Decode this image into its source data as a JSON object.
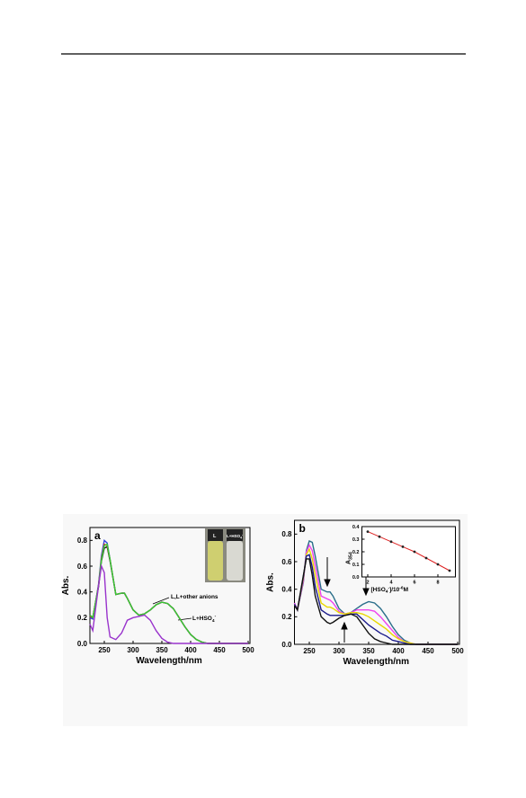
{
  "chart_data": [
    {
      "type": "line",
      "panel_label": "a",
      "y_label": "Abs.",
      "x_label": "Wavelength/nm",
      "x": [
        225,
        230,
        240,
        245,
        250,
        255,
        260,
        270,
        280,
        285,
        290,
        300,
        310,
        320,
        330,
        340,
        350,
        360,
        370,
        380,
        390,
        400,
        410,
        420,
        430,
        450,
        500
      ],
      "series": [
        {
          "color": "#1a1a1a",
          "values": [
            0.22,
            0.2,
            0.44,
            0.64,
            0.74,
            0.75,
            0.64,
            0.38,
            0.39,
            0.39,
            0.35,
            0.26,
            0.22,
            0.23,
            0.26,
            0.3,
            0.32,
            0.31,
            0.27,
            0.2,
            0.13,
            0.07,
            0.03,
            0.01,
            0,
            0,
            0
          ]
        },
        {
          "color": "#3344dd",
          "values": [
            0.2,
            0.19,
            0.46,
            0.68,
            0.8,
            0.78,
            0.65,
            0.38,
            0.39,
            0.39,
            0.35,
            0.26,
            0.22,
            0.23,
            0.26,
            0.3,
            0.32,
            0.31,
            0.27,
            0.2,
            0.13,
            0.07,
            0.03,
            0.01,
            0,
            0,
            0
          ]
        },
        {
          "color": "#dd2222",
          "values": [
            0.21,
            0.2,
            0.45,
            0.66,
            0.77,
            0.76,
            0.65,
            0.38,
            0.39,
            0.39,
            0.35,
            0.26,
            0.22,
            0.23,
            0.26,
            0.3,
            0.32,
            0.31,
            0.27,
            0.2,
            0.13,
            0.07,
            0.03,
            0.01,
            0,
            0,
            0
          ]
        },
        {
          "color": "#33cc33",
          "values": [
            0.22,
            0.2,
            0.45,
            0.65,
            0.76,
            0.77,
            0.65,
            0.38,
            0.39,
            0.39,
            0.35,
            0.26,
            0.22,
            0.23,
            0.26,
            0.3,
            0.32,
            0.31,
            0.27,
            0.2,
            0.13,
            0.07,
            0.03,
            0.01,
            0,
            0,
            0
          ]
        },
        {
          "color": "#9933cc",
          "values": [
            0.15,
            0.1,
            0.45,
            0.6,
            0.55,
            0.2,
            0.05,
            0.03,
            0.08,
            0.13,
            0.18,
            0.2,
            0.21,
            0.22,
            0.18,
            0.1,
            0.04,
            0.01,
            0,
            0,
            0,
            0,
            0,
            0,
            0,
            0,
            0
          ]
        }
      ],
      "xlim": [
        225,
        500
      ],
      "ylim": [
        0,
        0.9
      ],
      "xticks": [
        250,
        300,
        350,
        400,
        450,
        500
      ],
      "yticks": [
        {
          "value": 0,
          "label": "0.0"
        },
        0.2,
        0.4,
        0.6,
        0.8
      ],
      "annotations": [
        [
          "L,L+other anions"
        ],
        [
          "L+HSO",
          "4",
          "-"
        ]
      ],
      "photo_labels": [
        [
          "L"
        ],
        [
          "L+HSO",
          "4",
          "-"
        ]
      ]
    },
    {
      "type": "line",
      "panel_label": "b",
      "y_label": "Abs.",
      "x_label": "Wavelength/nm",
      "x": [
        225,
        230,
        240,
        245,
        250,
        255,
        260,
        270,
        280,
        285,
        290,
        300,
        310,
        320,
        330,
        340,
        350,
        360,
        370,
        380,
        390,
        400,
        410,
        420,
        430,
        450,
        500
      ],
      "series": [
        {
          "color": "#2a6e8a",
          "values": [
            0.3,
            0.25,
            0.45,
            0.68,
            0.75,
            0.74,
            0.64,
            0.4,
            0.38,
            0.38,
            0.35,
            0.26,
            0.22,
            0.23,
            0.26,
            0.29,
            0.31,
            0.3,
            0.26,
            0.2,
            0.13,
            0.07,
            0.03,
            0.01,
            0,
            0,
            0
          ]
        },
        {
          "color": "#ee44ee",
          "values": [
            0.3,
            0.25,
            0.46,
            0.67,
            0.72,
            0.68,
            0.57,
            0.35,
            0.33,
            0.32,
            0.3,
            0.24,
            0.22,
            0.23,
            0.25,
            0.25,
            0.25,
            0.24,
            0.2,
            0.15,
            0.1,
            0.05,
            0.02,
            0.01,
            0,
            0,
            0
          ]
        },
        {
          "color": "#e8d800",
          "values": [
            0.29,
            0.25,
            0.48,
            0.65,
            0.69,
            0.62,
            0.5,
            0.3,
            0.27,
            0.27,
            0.26,
            0.23,
            0.22,
            0.23,
            0.23,
            0.22,
            0.2,
            0.17,
            0.14,
            0.11,
            0.07,
            0.04,
            0.02,
            0.01,
            0,
            0,
            0
          ]
        },
        {
          "color": "#1a1a8a",
          "values": [
            0.29,
            0.25,
            0.49,
            0.64,
            0.65,
            0.56,
            0.42,
            0.25,
            0.22,
            0.21,
            0.21,
            0.21,
            0.21,
            0.22,
            0.22,
            0.18,
            0.14,
            0.11,
            0.08,
            0.06,
            0.03,
            0.02,
            0.01,
            0,
            0,
            0,
            0
          ]
        },
        {
          "color": "#111111",
          "values": [
            0.28,
            0.25,
            0.5,
            0.62,
            0.62,
            0.5,
            0.35,
            0.2,
            0.16,
            0.15,
            0.16,
            0.19,
            0.21,
            0.22,
            0.2,
            0.14,
            0.08,
            0.04,
            0.02,
            0.01,
            0,
            0,
            0,
            0,
            0,
            0,
            0
          ]
        }
      ],
      "xlim": [
        225,
        500
      ],
      "ylim": [
        0,
        0.9
      ],
      "xticks": [
        250,
        300,
        350,
        400,
        450,
        500
      ],
      "yticks": [
        {
          "value": 0,
          "label": "0.0"
        },
        0.2,
        0.4,
        0.6,
        0.8
      ]
    },
    {
      "type": "scatter",
      "y_label": [
        "A",
        "354"
      ],
      "x_label": [
        "[HSO",
        "4",
        "-",
        "]/10",
        "-6",
        "M"
      ],
      "x": [
        2,
        3,
        4,
        5,
        6,
        7,
        8,
        9
      ],
      "values": [
        0.36,
        0.32,
        0.28,
        0.24,
        0.2,
        0.15,
        0.1,
        0.05
      ],
      "color": "#dd2222",
      "marker_color": "#222222",
      "xlim": [
        1.5,
        9.5
      ],
      "ylim": [
        0,
        0.4
      ],
      "xticks": [
        2,
        4,
        6,
        8
      ],
      "yticks": [
        {
          "value": 0,
          "label": "0.0"
        },
        0.1,
        0.2,
        0.3,
        0.4
      ]
    }
  ]
}
